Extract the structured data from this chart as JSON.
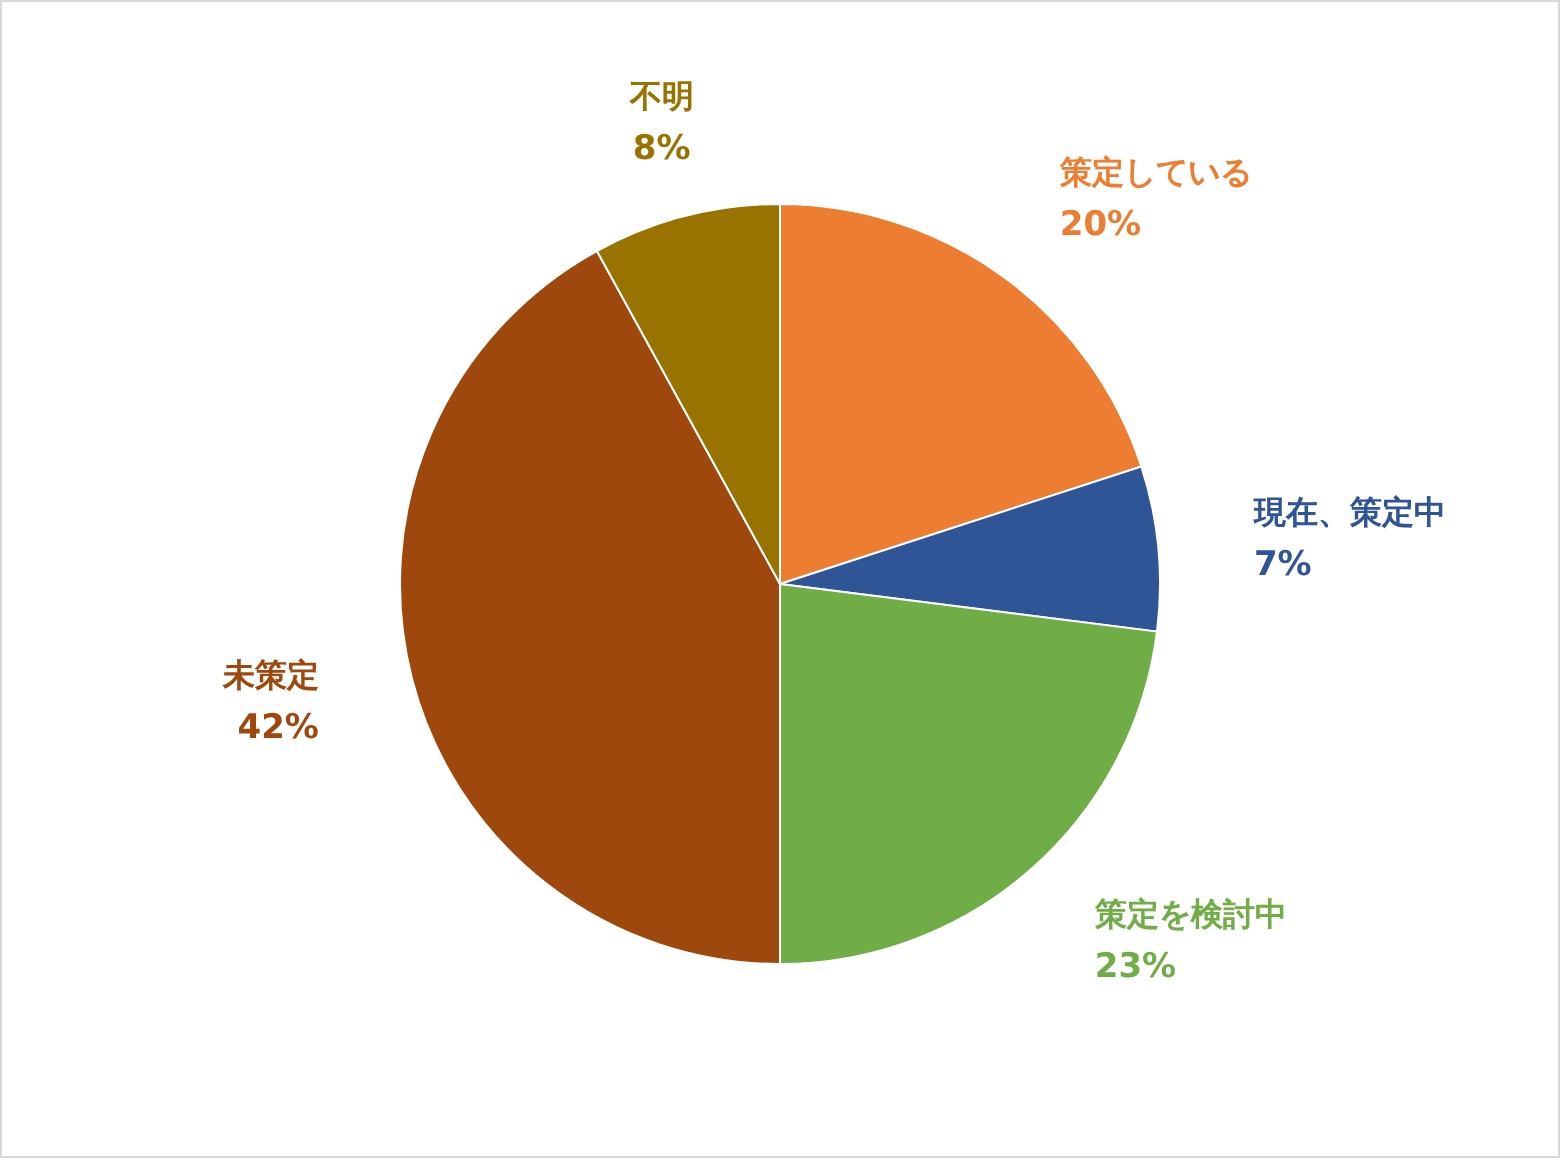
{
  "chart_data": {
    "type": "pie",
    "categories": [
      "策定している",
      "現在、策定中",
      "策定を検討中",
      "未策定",
      "不明"
    ],
    "values": [
      20,
      7,
      23,
      42,
      8
    ],
    "value_labels": [
      "20%",
      "7%",
      "23%",
      "42%",
      "8%"
    ],
    "colors": [
      "#ed7d31",
      "#2f5597",
      "#70ad47",
      "#9e480e",
      "#997300"
    ]
  }
}
